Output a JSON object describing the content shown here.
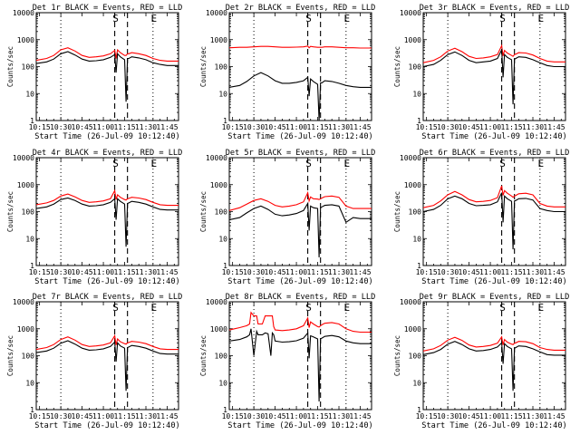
{
  "chart_data": {
    "type": "line",
    "xaxis": {
      "label": "Start Time (26-Jul-09 10:12:40)",
      "tick_labels": [
        "10:15",
        "10:30",
        "10:45",
        "11:00",
        "11:15",
        "11:30",
        "11:45"
      ],
      "tick_values_min": [
        15,
        30,
        45,
        60,
        75,
        90,
        105
      ],
      "range_min": [
        12.67,
        113
      ]
    },
    "yaxis": {
      "label": "Counts/sec",
      "scale": "log",
      "range": [
        1,
        10000
      ],
      "tick_labels": [
        "1",
        "10",
        "100",
        "1000",
        "10000"
      ]
    },
    "marker_lines": [
      {
        "style": "dotted",
        "x_min": 30,
        "label": ""
      },
      {
        "style": "dashed",
        "x_min": 68,
        "label": "S"
      },
      {
        "style": "dashed",
        "x_min": 77,
        "label": ""
      },
      {
        "style": "dotted",
        "x_min": 95,
        "label": "E"
      }
    ],
    "legend_note": "BLACK = Events, RED = LLD",
    "colors": {
      "events": "#000000",
      "lld": "#ff0000"
    },
    "panels": [
      {
        "title": "Det 1r BLACK = Events, RED = LLD",
        "x": [
          12.7,
          20,
          25,
          30,
          35,
          40,
          45,
          50,
          55,
          60,
          65,
          68,
          69,
          70,
          72,
          75,
          76,
          77,
          78,
          80,
          85,
          90,
          95,
          100,
          105,
          110,
          113
        ],
        "series": [
          {
            "name": "RED",
            "values": [
              170,
              200,
              260,
              420,
              500,
              380,
              260,
              220,
              230,
              250,
              300,
              400,
              200,
              420,
              330,
              260,
              260,
              300,
              300,
              330,
              300,
              260,
              200,
              170,
              160,
              160,
              160
            ]
          },
          {
            "name": "BLACK",
            "values": [
              130,
              150,
              190,
              300,
              360,
              270,
              190,
              160,
              165,
              180,
              220,
              280,
              60,
              300,
              230,
              180,
              5,
              200,
              200,
              230,
              210,
              180,
              140,
              120,
              110,
              110,
              110
            ]
          }
        ]
      },
      {
        "title": "Det 2r BLACK = Events, RED = LLD",
        "x": [
          12.7,
          20,
          25,
          30,
          35,
          40,
          45,
          50,
          55,
          60,
          65,
          68,
          69,
          70,
          72,
          75,
          76,
          77,
          78,
          80,
          85,
          90,
          95,
          100,
          105,
          110,
          113
        ],
        "series": [
          {
            "name": "RED",
            "values": [
              500,
              520,
              520,
              540,
              560,
              560,
              540,
              520,
              520,
              530,
              540,
              580,
              500,
              560,
              540,
              520,
              520,
              520,
              520,
              540,
              540,
              520,
              500,
              500,
              490,
              490,
              490
            ]
          },
          {
            "name": "BLACK",
            "values": [
              17,
              20,
              28,
              45,
              60,
              45,
              30,
              24,
              24,
              26,
              30,
              40,
              8,
              35,
              28,
              22,
              1,
              25,
              25,
              30,
              28,
              24,
              20,
              18,
              17,
              17,
              17
            ]
          }
        ]
      },
      {
        "title": "Det 3r BLACK = Events, RED = LLD",
        "x": [
          12.7,
          20,
          25,
          30,
          35,
          40,
          45,
          50,
          55,
          60,
          65,
          68,
          69,
          70,
          72,
          75,
          76,
          77,
          78,
          80,
          85,
          90,
          95,
          100,
          105,
          110,
          113
        ],
        "series": [
          {
            "name": "RED",
            "values": [
              140,
              170,
              230,
              380,
              480,
              360,
              240,
              200,
              210,
              230,
              280,
              600,
              250,
              400,
              320,
              260,
              240,
              280,
              290,
              330,
              320,
              270,
              200,
              160,
              150,
              150,
              150
            ]
          },
          {
            "name": "BLACK",
            "values": [
              100,
              120,
              170,
              280,
              350,
              260,
              170,
              140,
              150,
              160,
              200,
              420,
              40,
              280,
              220,
              180,
              4,
              190,
              200,
              230,
              220,
              180,
              140,
              110,
              100,
              100,
              100
            ]
          }
        ]
      },
      {
        "title": "Det 4r BLACK = Events, RED = LLD",
        "x": [
          12.7,
          20,
          25,
          30,
          35,
          40,
          45,
          50,
          55,
          60,
          65,
          68,
          69,
          70,
          72,
          75,
          76,
          77,
          78,
          80,
          85,
          90,
          95,
          100,
          105,
          110,
          113
        ],
        "series": [
          {
            "name": "RED",
            "values": [
              180,
              210,
              260,
              380,
              450,
              350,
              260,
              220,
              230,
              250,
              300,
              600,
              280,
              420,
              340,
              280,
              270,
              300,
              310,
              340,
              320,
              280,
              220,
              180,
              170,
              170,
              170
            ]
          },
          {
            "name": "BLACK",
            "values": [
              130,
              150,
              190,
              280,
              320,
              260,
              190,
              160,
              165,
              180,
              220,
              300,
              50,
              300,
              240,
              190,
              5,
              200,
              210,
              240,
              220,
              190,
              150,
              120,
              115,
              115,
              115
            ]
          }
        ]
      },
      {
        "title": "Det 5r BLACK = Events, RED = LLD",
        "x": [
          12.7,
          20,
          25,
          30,
          35,
          40,
          45,
          50,
          55,
          60,
          65,
          68,
          69,
          70,
          72,
          75,
          76,
          77,
          78,
          80,
          85,
          90,
          95,
          100,
          105,
          110,
          113
        ],
        "series": [
          {
            "name": "RED",
            "values": [
              110,
              140,
              190,
              260,
              300,
              240,
              170,
              150,
              160,
              180,
              230,
              500,
              250,
              350,
              300,
              290,
              280,
              300,
              320,
              360,
              380,
              340,
              160,
              130,
              130,
              130,
              130
            ]
          },
          {
            "name": "BLACK",
            "values": [
              50,
              60,
              90,
              130,
              160,
              120,
              80,
              70,
              75,
              85,
              110,
              200,
              20,
              160,
              140,
              130,
              2,
              140,
              150,
              170,
              180,
              160,
              40,
              60,
              55,
              55,
              55
            ]
          }
        ]
      },
      {
        "title": "Det 6r BLACK = Events, RED = LLD",
        "x": [
          12.7,
          20,
          25,
          30,
          35,
          40,
          45,
          50,
          55,
          60,
          65,
          68,
          69,
          70,
          72,
          75,
          76,
          77,
          78,
          80,
          85,
          90,
          95,
          100,
          105,
          110,
          113
        ],
        "series": [
          {
            "name": "RED",
            "values": [
              140,
              170,
              250,
              420,
              560,
              420,
              280,
              230,
              240,
              260,
              330,
              900,
              400,
              600,
              480,
              380,
              340,
              380,
              400,
              460,
              480,
              420,
              200,
              160,
              150,
              150,
              150
            ]
          },
          {
            "name": "BLACK",
            "values": [
              100,
              120,
              170,
              300,
              380,
              300,
              200,
              165,
              170,
              180,
              230,
              500,
              40,
              380,
              300,
              240,
              4,
              250,
              260,
              300,
              310,
              270,
              130,
              110,
              100,
              100,
              100
            ]
          }
        ]
      },
      {
        "title": "Det 7r BLACK = Events, RED = LLD",
        "x": [
          12.7,
          20,
          25,
          30,
          35,
          40,
          45,
          50,
          55,
          60,
          65,
          68,
          69,
          70,
          72,
          75,
          76,
          77,
          78,
          80,
          85,
          90,
          95,
          100,
          105,
          110,
          113
        ],
        "series": [
          {
            "name": "RED",
            "values": [
              170,
              200,
              260,
              400,
              500,
              380,
              260,
              220,
              230,
              250,
              300,
              550,
              250,
              420,
              330,
              280,
              270,
              300,
              310,
              340,
              320,
              280,
              220,
              180,
              170,
              170,
              170
            ]
          },
          {
            "name": "BLACK",
            "values": [
              130,
              150,
              190,
              290,
              360,
              270,
              190,
              160,
              165,
              180,
              220,
              320,
              60,
              300,
              230,
              190,
              5,
              200,
              210,
              240,
              220,
              190,
              150,
              120,
              115,
              115,
              115
            ]
          }
        ]
      },
      {
        "title": "Det 8r BLACK = Events, RED = LLD",
        "x": [
          12.7,
          20,
          25,
          27,
          28,
          30,
          32,
          33,
          36,
          38,
          40,
          42,
          43,
          44,
          45,
          50,
          55,
          60,
          65,
          68,
          69,
          70,
          72,
          75,
          76,
          77,
          78,
          80,
          85,
          90,
          95,
          100,
          105,
          110,
          113
        ],
        "series": [
          {
            "name": "RED",
            "values": [
              900,
              1100,
              1300,
              1500,
              4000,
              3000,
              3000,
              1500,
              1500,
              3000,
              3000,
              3000,
              3000,
              1200,
              900,
              850,
              900,
              1000,
              1300,
              2500,
              1100,
              1800,
              1500,
              1200,
              1150,
              1300,
              1400,
              1600,
              1700,
              1500,
              1000,
              800,
              750,
              750,
              750
            ]
          },
          {
            "name": "BLACK",
            "values": [
              350,
              400,
              500,
              600,
              1000,
              100,
              800,
              600,
              600,
              700,
              650,
              100,
              700,
              600,
              350,
              320,
              330,
              360,
              450,
              700,
              80,
              550,
              500,
              420,
              2,
              430,
              450,
              520,
              560,
              500,
              350,
              300,
              280,
              280,
              280
            ]
          }
        ]
      },
      {
        "title": "Det 9r BLACK = Events, RED = LLD",
        "x": [
          12.7,
          20,
          25,
          30,
          35,
          40,
          45,
          50,
          55,
          60,
          65,
          68,
          69,
          70,
          72,
          75,
          76,
          77,
          78,
          80,
          85,
          90,
          95,
          100,
          105,
          110,
          113
        ],
        "series": [
          {
            "name": "RED",
            "values": [
              150,
              180,
              240,
              380,
              480,
              370,
              250,
              210,
              220,
              240,
              290,
              500,
              250,
              400,
              320,
              270,
              260,
              290,
              300,
              340,
              330,
              280,
              200,
              170,
              160,
              160,
              160
            ]
          },
          {
            "name": "BLACK",
            "values": [
              110,
              130,
              170,
              270,
              340,
              260,
              180,
              150,
              155,
              170,
              210,
              300,
              50,
              280,
              220,
              180,
              5,
              190,
              200,
              230,
              220,
              180,
              140,
              110,
              105,
              105,
              105
            ]
          }
        ]
      }
    ]
  }
}
